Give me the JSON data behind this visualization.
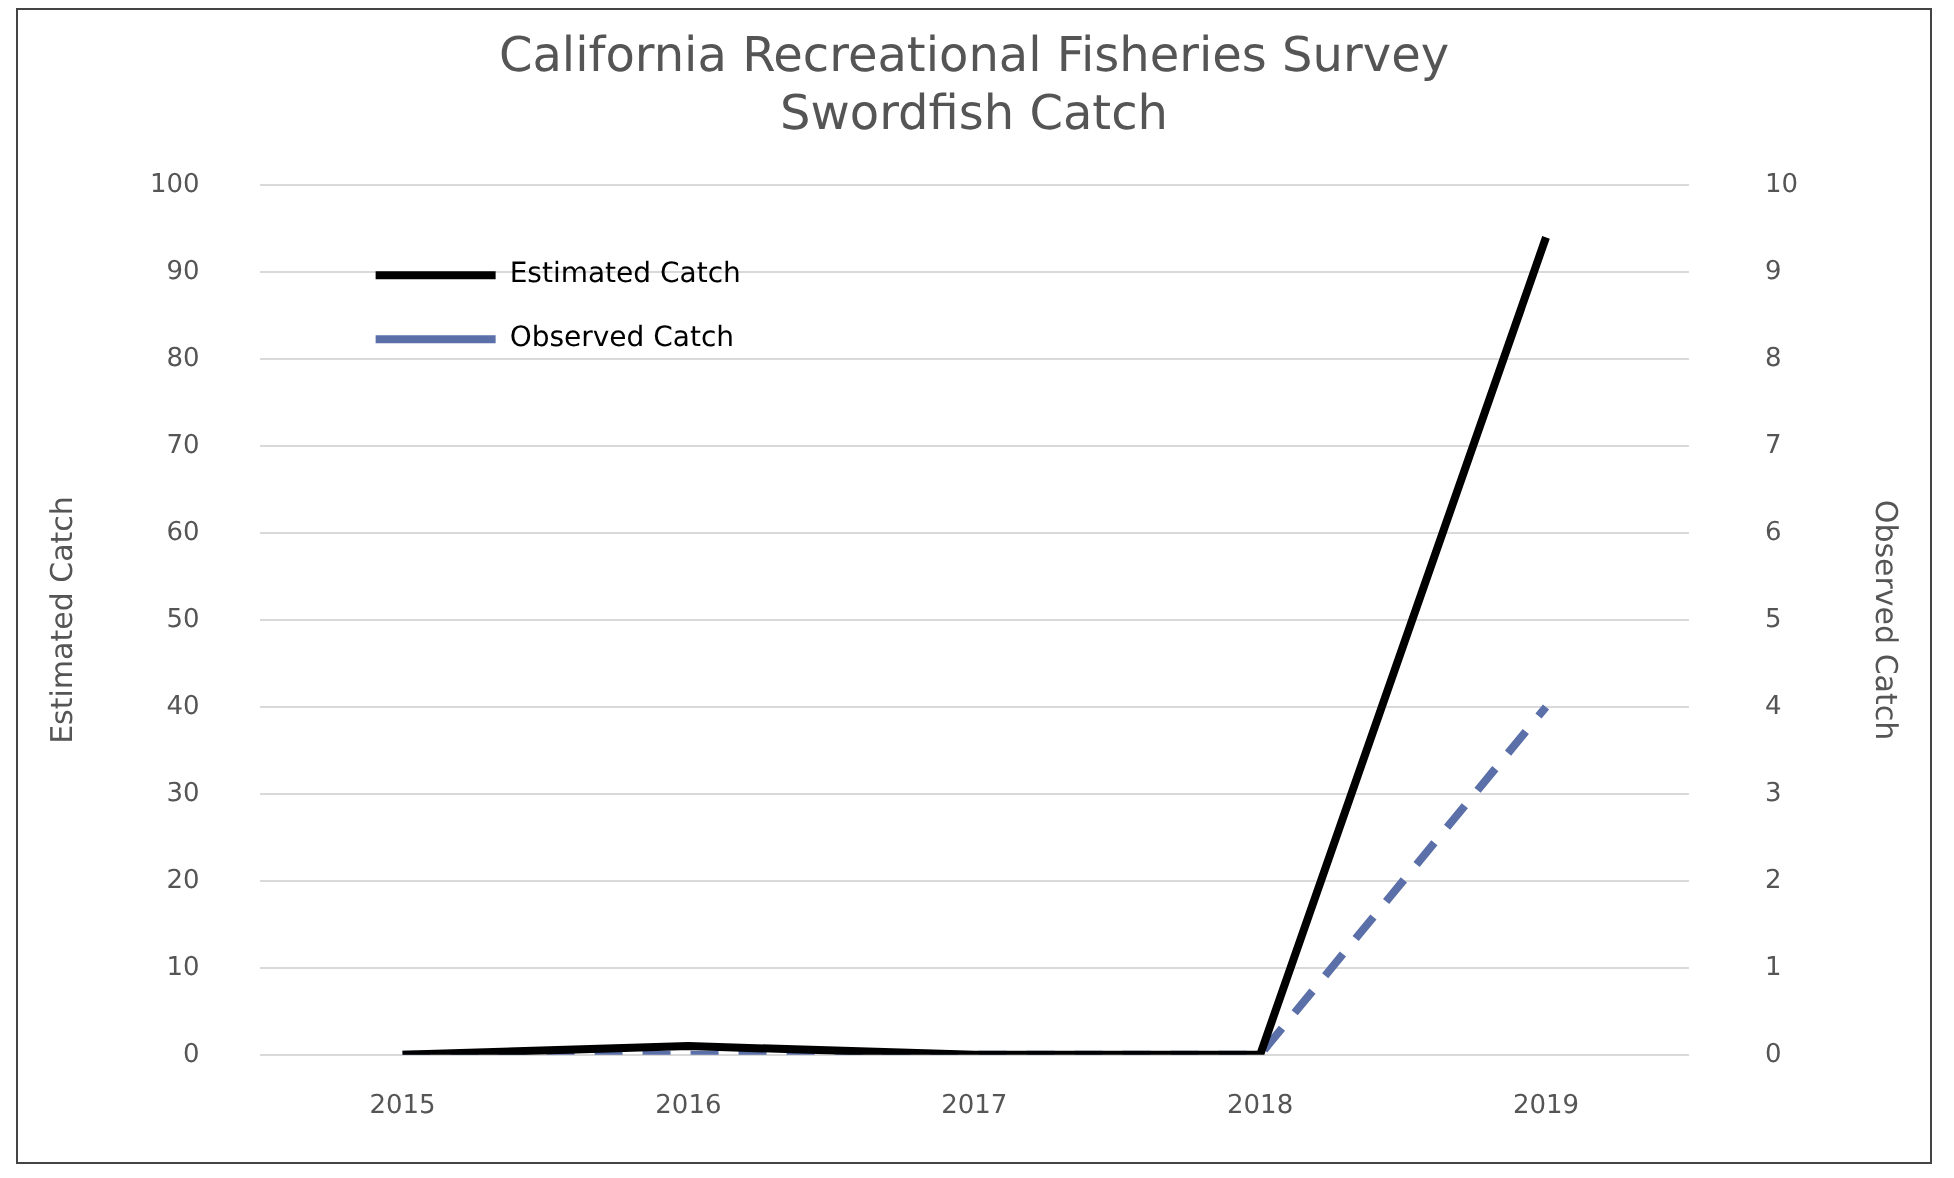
{
  "chart_data": {
    "type": "line",
    "title": [
      "California Recreational Fisheries Survey",
      "Swordfish Catch"
    ],
    "ylabel": "Estimated Catch",
    "y2label": "Observed Catch",
    "categories": [
      "2015",
      "2016",
      "2017",
      "2018",
      "2019"
    ],
    "series": [
      {
        "name": "Estimated Catch",
        "color": "#000000",
        "values": [
          0,
          1,
          0,
          0,
          94
        ],
        "line_style": "solid"
      },
      {
        "name": "Observed Catch",
        "color": "#5b6fa8",
        "values": [
          0,
          0,
          0,
          0,
          4
        ],
        "axis": "y2",
        "line_style": "dashed"
      }
    ],
    "ylim": [
      0,
      100
    ],
    "yticks": [
      0,
      10,
      20,
      30,
      40,
      50,
      60,
      70,
      80,
      90,
      100
    ],
    "y2lim": [
      0,
      10
    ],
    "y2ticks": [
      0,
      1,
      2,
      3,
      4,
      5,
      6,
      7,
      8,
      9,
      10
    ],
    "grid": "y",
    "legend": "top left",
    "marker": "none"
  }
}
